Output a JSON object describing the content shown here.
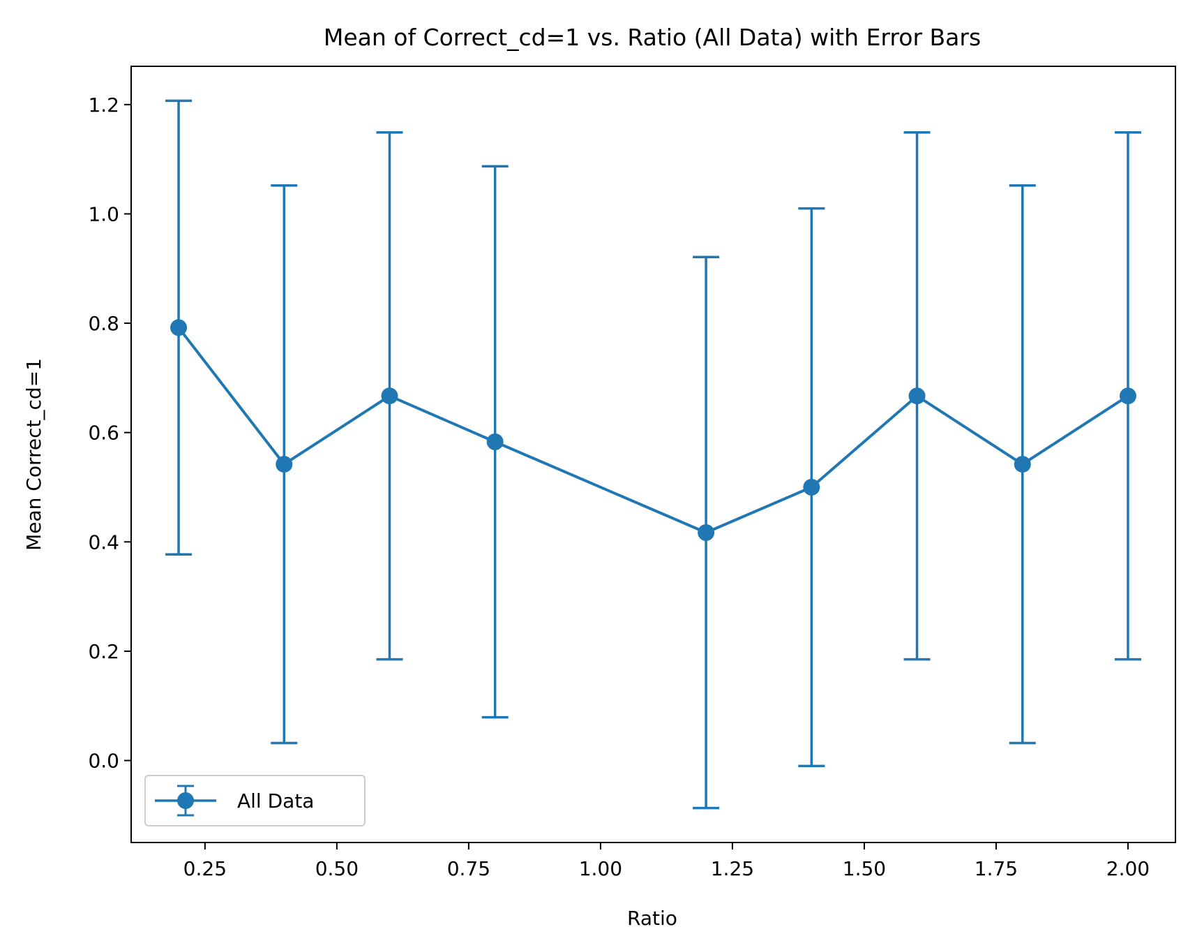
{
  "chart_data": {
    "type": "line",
    "title": "Mean of Correct_cd=1 vs. Ratio (All Data) with Error Bars",
    "xlabel": "Ratio",
    "ylabel": "Mean Correct_cd=1",
    "xlim": [
      0.11,
      2.09
    ],
    "ylim": [
      -0.15,
      1.27
    ],
    "x_ticks": [
      0.25,
      0.5,
      0.75,
      1.0,
      1.25,
      1.5,
      1.75,
      2.0
    ],
    "x_tick_labels": [
      "0.25",
      "0.50",
      "0.75",
      "1.00",
      "1.25",
      "1.50",
      "1.75",
      "2.00"
    ],
    "y_ticks": [
      0.0,
      0.2,
      0.4,
      0.6,
      0.8,
      1.0,
      1.2
    ],
    "y_tick_labels": [
      "0.0",
      "0.2",
      "0.4",
      "0.6",
      "0.8",
      "1.0",
      "1.2"
    ],
    "grid": false,
    "legend_position": "lower-left",
    "series": [
      {
        "name": "All Data",
        "color": "#1f77b4",
        "x": [
          0.2,
          0.4,
          0.6,
          0.8,
          1.2,
          1.4,
          1.6,
          1.8,
          2.0
        ],
        "y": [
          0.792,
          0.542,
          0.667,
          0.583,
          0.417,
          0.5,
          0.667,
          0.542,
          0.667
        ],
        "yerr": [
          0.415,
          0.51,
          0.482,
          0.504,
          0.504,
          0.51,
          0.482,
          0.51,
          0.482
        ]
      }
    ]
  }
}
